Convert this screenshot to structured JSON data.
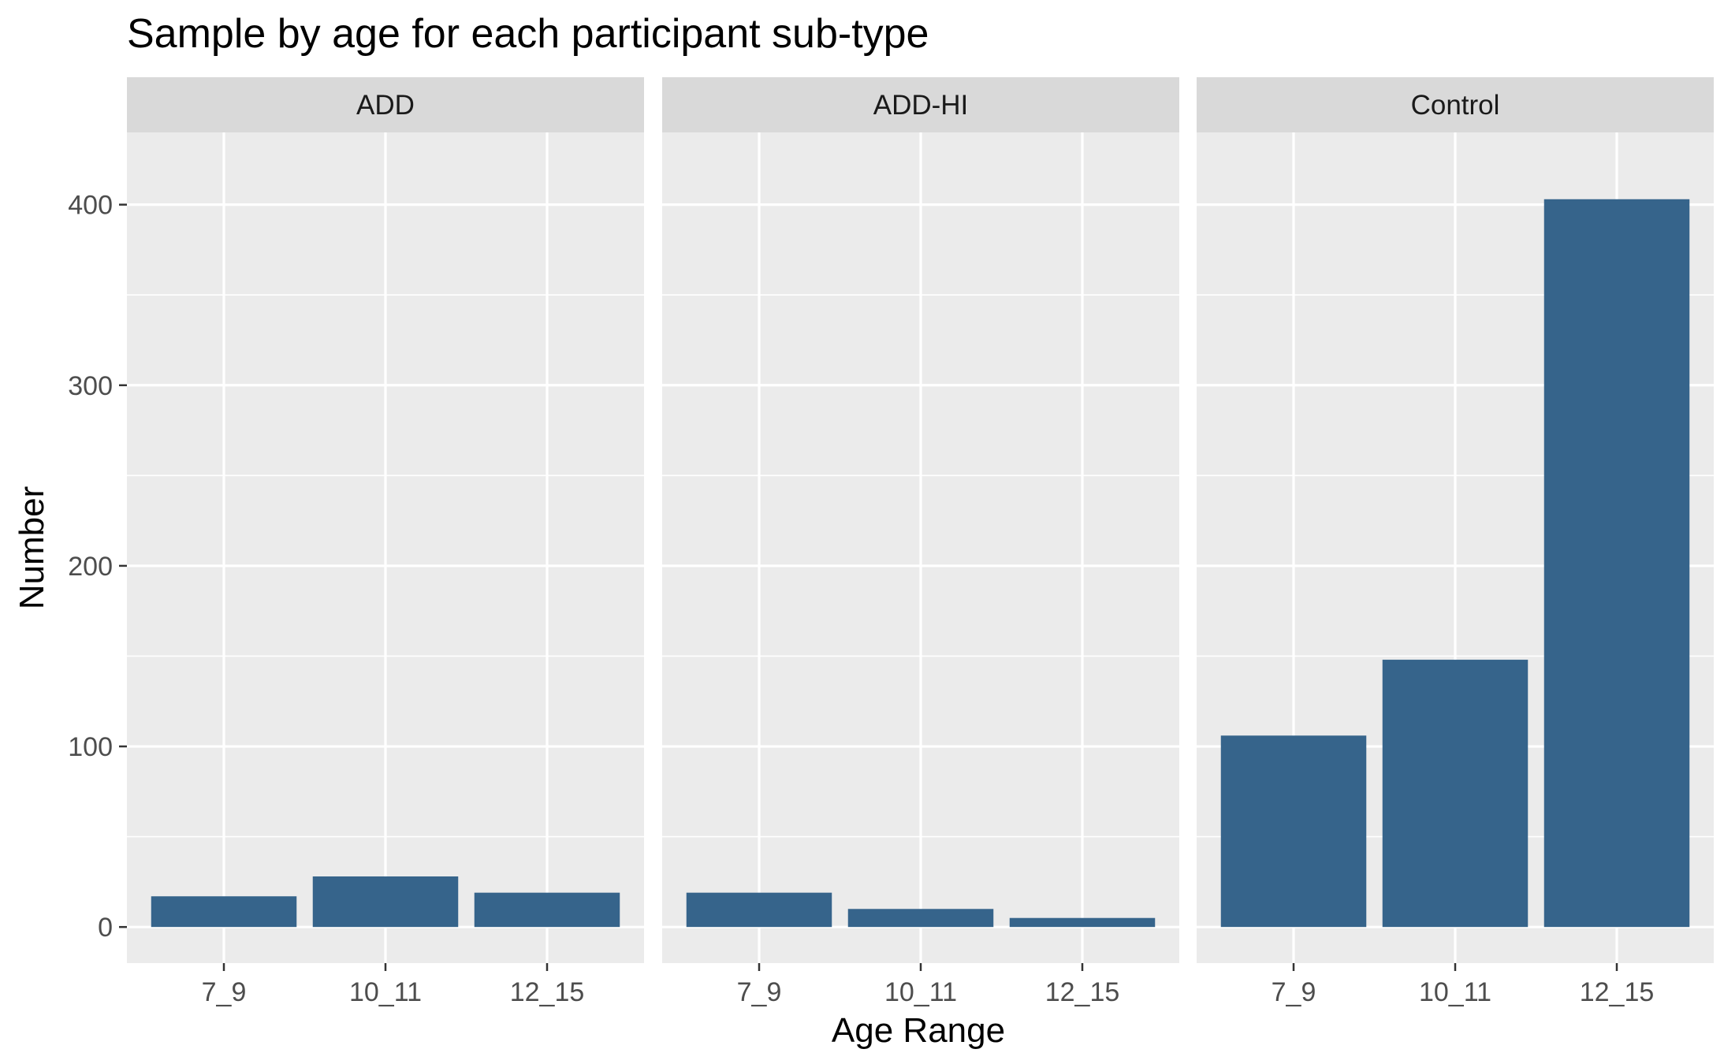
{
  "chart_data": {
    "type": "bar",
    "title": "Sample by age for each participant sub-type",
    "xlabel": "Age Range",
    "ylabel": "Number",
    "ylim": [
      -20,
      440
    ],
    "yticks": [
      0,
      100,
      200,
      300,
      400
    ],
    "categories": [
      "7_9",
      "10_11",
      "12_15"
    ],
    "bar_color": "#36648b",
    "panel_background": "#ebebeb",
    "strip_background": "#d9d9d9",
    "grid": true,
    "legend": "none",
    "facets": [
      {
        "name": "ADD",
        "values": [
          17,
          28,
          19
        ]
      },
      {
        "name": "ADD-HI",
        "values": [
          19,
          10,
          5
        ]
      },
      {
        "name": "Control",
        "values": [
          106,
          148,
          403
        ]
      }
    ]
  }
}
